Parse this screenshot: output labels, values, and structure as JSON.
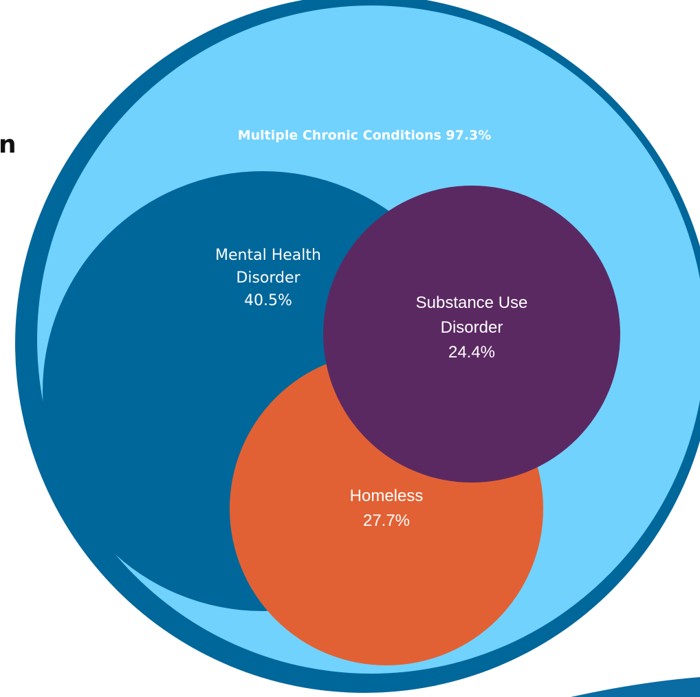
{
  "fragment_text": "n",
  "colors": {
    "outer_ring": "#00679b",
    "outer_fill": "#71d2fd",
    "mental_health": "#00679b",
    "substance_use": "#5b2962",
    "homeless": "#e26134",
    "label_text": "#ffffff",
    "fragment_text": "#111111"
  },
  "sets": [
    {
      "key": "multiple_chronic_conditions",
      "label": "Multiple Chronic Conditions 97.3%",
      "value": 97.3
    },
    {
      "key": "mental_health_disorder",
      "label_lines": [
        "Mental Health",
        "Disorder",
        "40.5%"
      ],
      "value": 40.5
    },
    {
      "key": "substance_use_disorder",
      "label_lines": [
        "Substance Use",
        "Disorder",
        "24.4%"
      ],
      "value": 24.4
    },
    {
      "key": "homeless",
      "label_lines": [
        "Homeless",
        "27.7%"
      ],
      "value": 27.7
    }
  ]
}
